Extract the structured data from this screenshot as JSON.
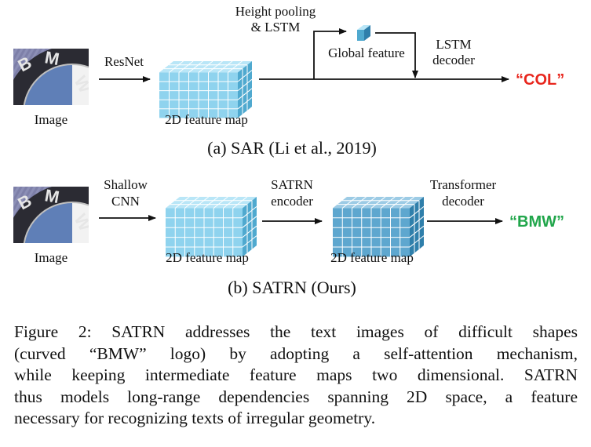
{
  "diagram_a": {
    "input_label": "Image",
    "backbone_label": "ResNet",
    "feature_map_label": "2D feature map",
    "pooling_label_line1": "Height pooling",
    "pooling_label_line2": "& LSTM",
    "global_feature_label": "Global feature",
    "decoder_label_line1": "LSTM",
    "decoder_label_line2": "decoder",
    "output_text": "“COL”",
    "output_color": "#e8261d",
    "subcaption": "(a) SAR (Li et al., 2019)"
  },
  "diagram_b": {
    "input_label": "Image",
    "backbone_label_line1": "Shallow",
    "backbone_label_line2": "CNN",
    "feature_map_label_1": "2D feature map",
    "encoder_label_line1": "SATRN",
    "encoder_label_line2": "encoder",
    "feature_map_label_2": "2D feature map",
    "decoder_label_line1": "Transformer",
    "decoder_label_line2": "decoder",
    "output_text": "“BMW”",
    "output_color": "#21a64b",
    "subcaption": "(b) SATRN (Ours)"
  },
  "logo_letters": [
    "B",
    "M",
    "W"
  ],
  "colors": {
    "cube_front": "#8fd3ee",
    "cube_top": "#b9e6f7",
    "cube_side": "#4fa9cf",
    "cube_front_dark": "#5ea7cf",
    "cube_top_dark": "#9ccbe5",
    "cube_side_dark": "#2f7fab",
    "grid_line": "#ffffff"
  },
  "caption": {
    "lines": [
      "Figure 2: SATRN addresses the text images of difficult shapes",
      "(curved “BMW” logo) by adopting a self-attention mechanism,",
      "while keeping intermediate feature maps two dimensional. SATRN",
      "thus models long-range dependencies spanning 2D space, a feature",
      "necessary for recognizing texts of irregular geometry."
    ]
  }
}
